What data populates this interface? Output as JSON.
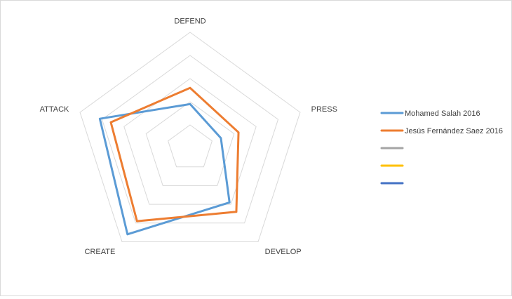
{
  "chart_data": {
    "type": "radar",
    "axes": [
      "DEFEND",
      "PRESS",
      "DEVELOP",
      "CREATE",
      "ATTACK"
    ],
    "scale": {
      "min": 0,
      "max": 5,
      "rings": 5
    },
    "grid": true,
    "legend_position": "right",
    "series": [
      {
        "name": "Mohamed Salah 2016",
        "color": "#5B9BD5",
        "values": [
          1.9,
          1.4,
          2.9,
          4.6,
          4.1
        ]
      },
      {
        "name": "Jesús Fernández Saez 2016",
        "color": "#ED7D31",
        "values": [
          2.6,
          2.2,
          3.4,
          3.9,
          3.6
        ]
      },
      {
        "name": "",
        "color": "#A5A5A5",
        "values": []
      },
      {
        "name": "",
        "color": "#FFC000",
        "values": []
      },
      {
        "name": "",
        "color": "#4472C4",
        "values": []
      }
    ]
  }
}
